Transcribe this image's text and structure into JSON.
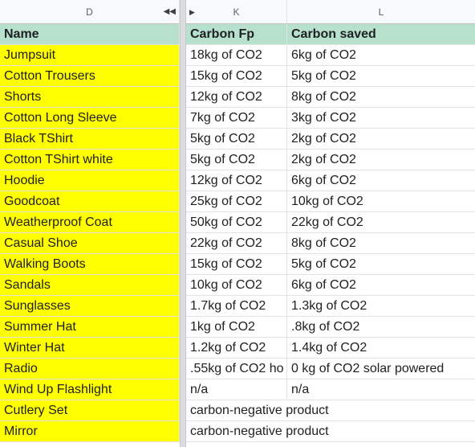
{
  "columns": {
    "d": "D",
    "k": "K",
    "l": "L"
  },
  "header": {
    "name": "Name",
    "carbon_fp": "Carbon Fp",
    "carbon_saved": "Carbon saved"
  },
  "rows": [
    {
      "name": "Jumpsuit",
      "fp": "18kg of CO2",
      "saved": "6kg of CO2"
    },
    {
      "name": "Cotton Trousers",
      "fp": "15kg of CO2",
      "saved": "5kg of CO2"
    },
    {
      "name": "Shorts",
      "fp": "12kg of CO2",
      "saved": "8kg of CO2"
    },
    {
      "name": "Cotton Long Sleeve",
      "fp": "7kg of CO2",
      "saved": "3kg of CO2"
    },
    {
      "name": "Black TShirt",
      "fp": "5kg of CO2",
      "saved": "2kg of CO2"
    },
    {
      "name": "Cotton TShirt white",
      "fp": "5kg of CO2",
      "saved": "2kg of CO2"
    },
    {
      "name": "Hoodie",
      "fp": "12kg of CO2",
      "saved": "6kg of CO2"
    },
    {
      "name": "Goodcoat",
      "fp": "25kg of CO2",
      "saved": "10kg of CO2"
    },
    {
      "name": "Weatherproof Coat",
      "fp": "50kg of CO2",
      "saved": "22kg of CO2"
    },
    {
      "name": "Casual Shoe",
      "fp": "22kg of CO2",
      "saved": "8kg of CO2"
    },
    {
      "name": "Walking Boots",
      "fp": "15kg of CO2",
      "saved": "5kg of CO2"
    },
    {
      "name": "Sandals",
      "fp": "10kg of CO2",
      "saved": "6kg of CO2"
    },
    {
      "name": "Sunglasses",
      "fp": "1.7kg of CO2",
      "saved": "1.3kg of CO2"
    },
    {
      "name": "Summer Hat",
      "fp": "1kg of CO2",
      "saved": ".8kg of CO2"
    },
    {
      "name": "Winter Hat",
      "fp": "1.2kg of CO2",
      "saved": "1.4kg of CO2"
    },
    {
      "name": "Radio",
      "fp": ".55kg of CO2 ho",
      "saved": "0 kg of CO2 solar powered"
    },
    {
      "name": "Wind Up Flashlight",
      "fp": "n/a",
      "saved": "n/a"
    },
    {
      "name": "Cutlery Set",
      "merged": "carbon-negative product"
    },
    {
      "name": "Mirror",
      "merged": "carbon-negative product"
    }
  ]
}
